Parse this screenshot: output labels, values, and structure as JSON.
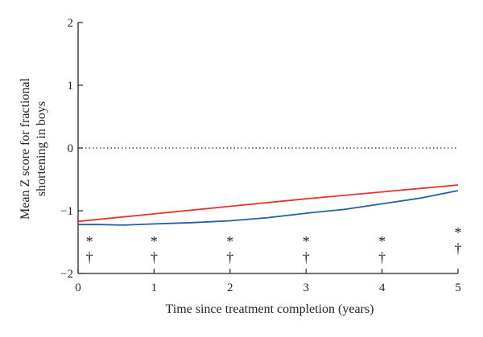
{
  "chart_data": {
    "type": "line",
    "xlabel": "Time since treatment completion (years)",
    "ylabel_lines": [
      "Mean Z score for fractional",
      "shortening in boys"
    ],
    "xlim": [
      0,
      5
    ],
    "ylim": [
      -2,
      2
    ],
    "xticks": [
      0,
      1,
      2,
      3,
      4,
      5
    ],
    "yticks": [
      2,
      1,
      0,
      -1,
      -2
    ],
    "xtick_labels": [
      "0",
      "1",
      "2",
      "3",
      "4",
      "5"
    ],
    "ytick_labels": [
      "2",
      "1",
      "0",
      "−1",
      "−2"
    ],
    "reference_line": {
      "y": 0,
      "style": "dotted",
      "color": "#222222"
    },
    "series": [
      {
        "color": "#e8322b",
        "x": [
          0,
          1,
          2,
          3,
          4,
          5
        ],
        "y": [
          -1.17,
          -1.05,
          -0.93,
          -0.81,
          -0.7,
          -0.59
        ]
      },
      {
        "color": "#1f5fa8",
        "x": [
          0,
          0.3,
          0.6,
          1,
          1.5,
          2,
          2.5,
          3,
          3.5,
          4,
          4.5,
          5
        ],
        "y": [
          -1.22,
          -1.22,
          -1.23,
          -1.21,
          -1.19,
          -1.16,
          -1.11,
          -1.04,
          -0.98,
          -0.89,
          -0.8,
          -0.68
        ]
      }
    ],
    "annotations": [
      {
        "x": 0.15,
        "symbols": [
          "*",
          "†"
        ]
      },
      {
        "x": 1,
        "symbols": [
          "*",
          "†"
        ]
      },
      {
        "x": 2,
        "symbols": [
          "*",
          "†"
        ]
      },
      {
        "x": 3,
        "symbols": [
          "*",
          "†"
        ]
      },
      {
        "x": 4,
        "symbols": [
          "*",
          "†"
        ]
      },
      {
        "x": 5,
        "symbols": [
          "*",
          "†"
        ]
      }
    ]
  }
}
